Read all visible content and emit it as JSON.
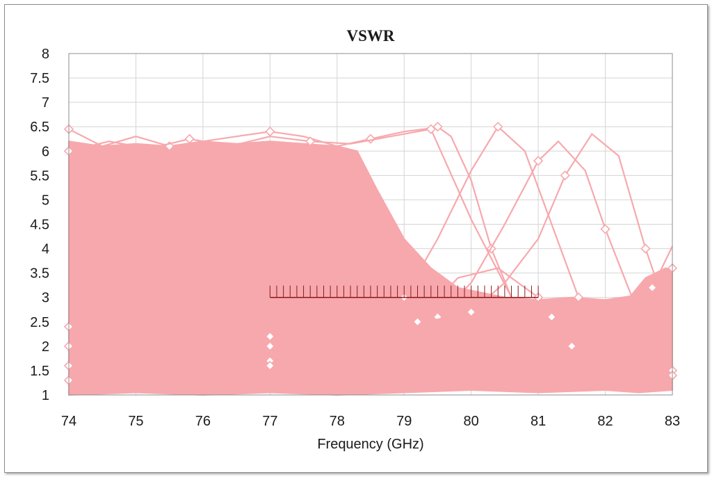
{
  "chart_data": {
    "type": "line",
    "title": "VSWR",
    "xlabel": "Frequency (GHz)",
    "ylabel": "",
    "xlim": [
      74,
      83
    ],
    "ylim": [
      1,
      8
    ],
    "x_ticks": [
      "74",
      "75",
      "76",
      "77",
      "78",
      "79",
      "80",
      "81",
      "82",
      "83"
    ],
    "y_ticks": [
      "1",
      "1.5",
      "2",
      "2.5",
      "3",
      "3.5",
      "4",
      "4.5",
      "5",
      "5.5",
      "6",
      "6.5",
      "7",
      "7.5",
      "8"
    ],
    "grid": true,
    "legend": "none",
    "series_color": "#f7a8ad",
    "spec_mask": {
      "x": [
        77,
        81
      ],
      "y": 3.0,
      "color": "#8b1a1a"
    },
    "series": [
      {
        "x": [
          74.0,
          74.5,
          75.0,
          75.5,
          76.0,
          76.5,
          77.0,
          77.5,
          78.0,
          78.5,
          79.0,
          79.3,
          79.5,
          79.7,
          80.0,
          80.3,
          80.6,
          81.0,
          81.5,
          82.0,
          82.5,
          83.0
        ],
        "y": [
          6.45,
          6.1,
          6.3,
          6.1,
          6.2,
          6.3,
          6.4,
          6.3,
          6.1,
          6.25,
          6.4,
          6.45,
          6.5,
          6.3,
          5.4,
          4.0,
          3.0,
          2.4,
          2.0,
          1.8,
          1.6,
          1.5
        ]
      },
      {
        "x": [
          74.0,
          75.0,
          76.0,
          77.0,
          78.0,
          78.5,
          79.0,
          79.5,
          80.0,
          80.4,
          80.8,
          81.2,
          81.6,
          82.0,
          82.5,
          83.0
        ],
        "y": [
          2.0,
          2.2,
          1.8,
          2.0,
          2.3,
          2.5,
          3.0,
          4.2,
          5.6,
          6.5,
          6.0,
          4.5,
          3.0,
          2.2,
          1.7,
          1.4
        ]
      },
      {
        "x": [
          74.0,
          75.0,
          76.0,
          77.0,
          78.0,
          79.0,
          79.5,
          80.0,
          80.5,
          81.0,
          81.3,
          81.7,
          82.0,
          82.4,
          83.0
        ],
        "y": [
          1.6,
          1.9,
          2.1,
          1.7,
          2.0,
          2.2,
          2.6,
          3.3,
          4.5,
          5.8,
          6.2,
          5.6,
          4.4,
          3.0,
          2.0
        ]
      },
      {
        "x": [
          74.0,
          75.0,
          76.0,
          77.0,
          78.0,
          79.0,
          80.0,
          80.5,
          81.0,
          81.4,
          81.8,
          82.2,
          82.6,
          83.0
        ],
        "y": [
          2.4,
          2.1,
          2.5,
          2.2,
          2.6,
          2.4,
          2.7,
          3.3,
          4.2,
          5.5,
          6.35,
          5.9,
          4.0,
          2.4
        ]
      },
      {
        "x": [
          74.0,
          74.6,
          75.2,
          75.8,
          76.4,
          77.0,
          77.6,
          78.2,
          78.8,
          79.4,
          80.0,
          80.6,
          81.2,
          81.8,
          82.4,
          83.0
        ],
        "y": [
          6.0,
          6.2,
          6.05,
          6.25,
          6.1,
          6.3,
          6.2,
          6.15,
          6.3,
          6.45,
          4.6,
          3.0,
          2.6,
          2.2,
          2.8,
          3.6
        ]
      },
      {
        "x": [
          74.0,
          75.0,
          76.0,
          77.0,
          78.0,
          78.6,
          79.2,
          79.8,
          80.4,
          81.0,
          81.6,
          82.2,
          82.7,
          83.0
        ],
        "y": [
          1.3,
          1.5,
          1.4,
          1.6,
          1.5,
          1.8,
          2.5,
          3.4,
          3.6,
          3.0,
          2.4,
          2.0,
          3.2,
          4.05
        ]
      }
    ]
  }
}
